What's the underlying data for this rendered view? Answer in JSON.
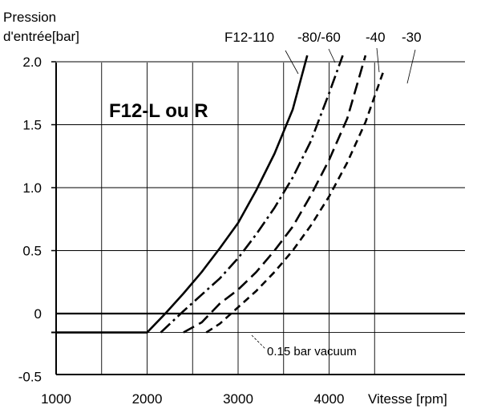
{
  "chart_data": {
    "type": "line",
    "title": "F12-L ou R",
    "ylabel_line1": "Pression",
    "ylabel_line2": "d'entrée[bar]",
    "xlabel": "Vitesse [rpm]",
    "xlim": [
      1000,
      4500
    ],
    "ylim": [
      -0.5,
      2.0
    ],
    "x_ticks": [
      "1000",
      "2000",
      "3000",
      "4000"
    ],
    "y_ticks": [
      "2.0",
      "1.5",
      "1.0",
      "0.5",
      "0",
      "-0.5"
    ],
    "grid": true,
    "annotation": "0.15 bar vacuum",
    "vacuum_level": -0.15,
    "series": [
      {
        "name": "F12-110",
        "style": "solid",
        "x": [
          1000,
          2000,
          2200,
          2400,
          2600,
          2800,
          3000,
          3200,
          3400,
          3600,
          3760
        ],
        "y": [
          -0.15,
          -0.15,
          0.0,
          0.16,
          0.33,
          0.52,
          0.72,
          0.98,
          1.27,
          1.62,
          2.05
        ]
      },
      {
        "name": "-80/-60",
        "style": "dashdot",
        "x": [
          2150,
          2400,
          2600,
          2800,
          3000,
          3200,
          3400,
          3600,
          3800,
          4000,
          4150
        ],
        "y": [
          -0.15,
          0.02,
          0.15,
          0.28,
          0.44,
          0.63,
          0.84,
          1.08,
          1.37,
          1.75,
          2.05
        ]
      },
      {
        "name": "-40",
        "style": "longdash",
        "x": [
          2400,
          2600,
          2800,
          3000,
          3200,
          3400,
          3600,
          3800,
          4000,
          4200,
          4400
        ],
        "y": [
          -0.15,
          -0.07,
          0.08,
          0.19,
          0.33,
          0.5,
          0.69,
          0.94,
          1.22,
          1.55,
          2.05
        ]
      },
      {
        "name": "-30",
        "style": "dash",
        "x": [
          2650,
          2800,
          3000,
          3200,
          3400,
          3600,
          3800,
          4000,
          4200,
          4400,
          4600
        ],
        "y": [
          -0.15,
          -0.08,
          0.05,
          0.18,
          0.33,
          0.5,
          0.7,
          0.93,
          1.2,
          1.52,
          1.93
        ]
      }
    ]
  }
}
